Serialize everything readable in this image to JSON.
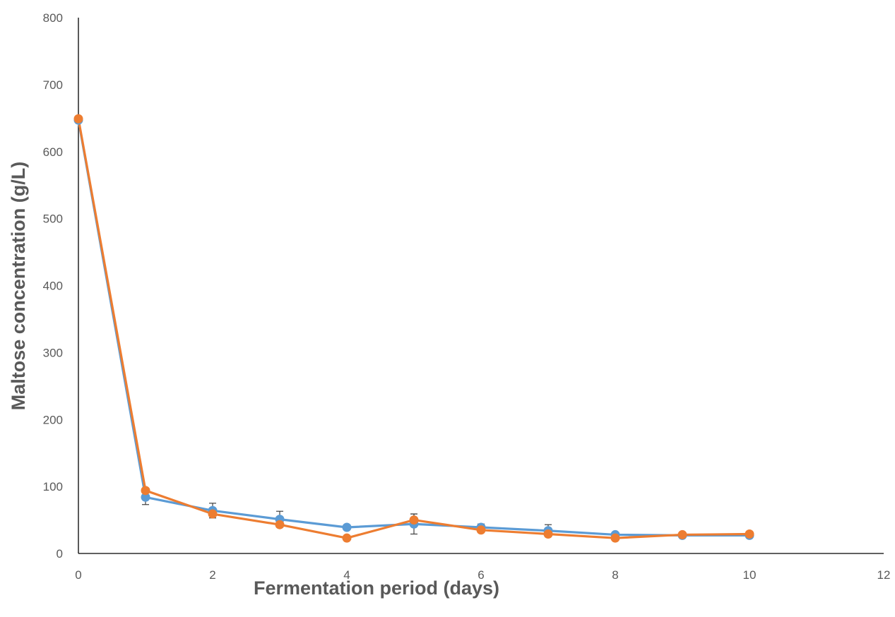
{
  "chart_data": {
    "type": "line",
    "title": "",
    "xlabel": "Fermentation period (days)",
    "ylabel": "Maltose concentration (g/L)",
    "xlim": [
      0,
      12
    ],
    "ylim": [
      0,
      800
    ],
    "x_ticks": [
      0,
      2,
      4,
      6,
      8,
      10,
      12
    ],
    "y_ticks": [
      0,
      100,
      200,
      300,
      400,
      500,
      600,
      700,
      800
    ],
    "grid": false,
    "legend": "none",
    "x": [
      0,
      1,
      2,
      3,
      4,
      5,
      6,
      7,
      8,
      9,
      10
    ],
    "series": [
      {
        "color": "#5B9BD5",
        "values": [
          647,
          84,
          64,
          51,
          39,
          44,
          39,
          34,
          28,
          27,
          27
        ],
        "error": [
          0,
          11,
          11,
          12,
          0,
          15,
          5,
          9,
          0,
          0,
          0
        ]
      },
      {
        "color": "#ED7D31",
        "values": [
          649,
          94,
          59,
          43,
          23,
          50,
          35,
          29,
          23,
          28,
          29
        ],
        "error": [
          0,
          0,
          0,
          0,
          0,
          9,
          0,
          0,
          0,
          0,
          0
        ]
      }
    ]
  }
}
